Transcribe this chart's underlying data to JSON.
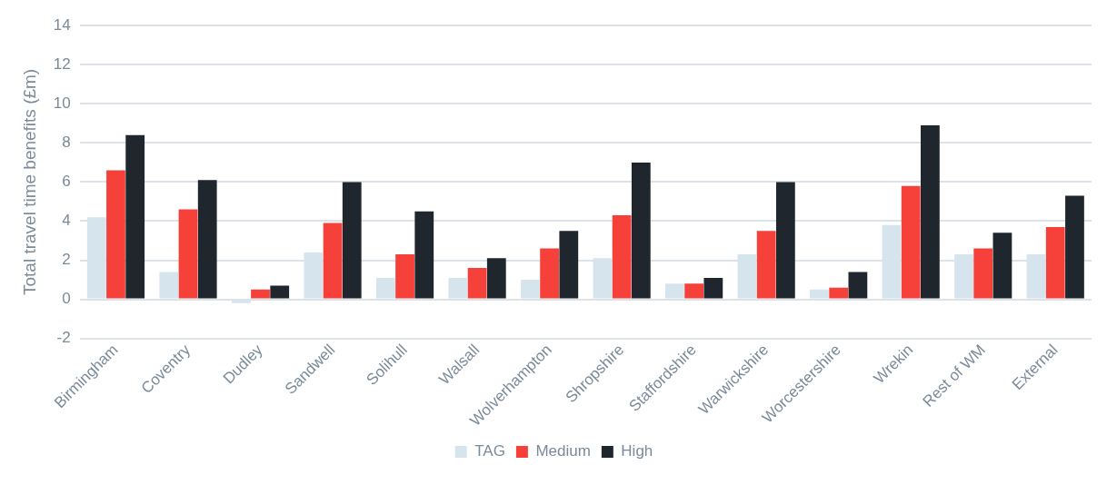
{
  "chart_data": {
    "type": "bar",
    "ylabel": "Total travel time benefits (£m)",
    "categories": [
      "Birmingham",
      "Coventry",
      "Dudley",
      "Sandwell",
      "Solihull",
      "Walsall",
      "Wolverhampton",
      "Shropshire",
      "Staffordshire",
      "Warwickshire",
      "Worcestershire",
      "Wrekin",
      "Rest of WM",
      "External"
    ],
    "series": [
      {
        "name": "TAG",
        "color": "#d6e4ee",
        "values": [
          4.2,
          1.4,
          -0.2,
          2.4,
          1.1,
          1.1,
          1.0,
          2.1,
          0.8,
          2.3,
          0.5,
          3.8,
          2.3,
          2.3
        ]
      },
      {
        "name": "Medium",
        "color": "#f5413a",
        "values": [
          6.6,
          4.6,
          0.5,
          3.9,
          2.3,
          1.6,
          2.6,
          4.3,
          0.8,
          3.5,
          0.6,
          5.8,
          2.6,
          3.7
        ]
      },
      {
        "name": "High",
        "color": "#20262d",
        "values": [
          8.4,
          6.1,
          0.7,
          6.0,
          4.5,
          2.1,
          3.5,
          7.0,
          1.1,
          6.0,
          1.4,
          8.9,
          3.4,
          5.3
        ]
      }
    ],
    "ylim": [
      -2,
      14
    ],
    "yticks": [
      -2,
      0,
      2,
      4,
      6,
      8,
      10,
      12,
      14
    ],
    "grid": "y",
    "legend": "bottom"
  }
}
